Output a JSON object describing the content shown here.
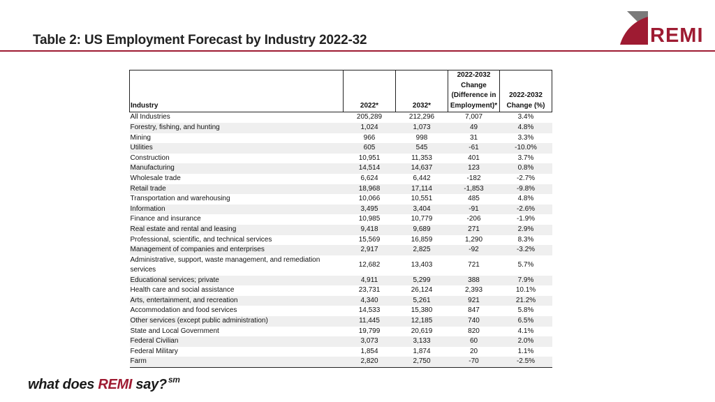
{
  "slide": {
    "title": "Table 2: US Employment Forecast by Industry 2022-32",
    "logo_text": "REMI",
    "tagline_pre": "what does ",
    "tagline_brand": "REMI",
    "tagline_post": " say?",
    "tagline_mark": "sm"
  },
  "colors": {
    "accent": "#9e1b32",
    "logo_gray": "#7a7a7a",
    "stripe": "#efefef"
  },
  "table": {
    "headers": {
      "industry": "Industry",
      "y2022": "2022*",
      "y2032": "2032*",
      "change": "2022-2032 Change (Difference in Employment)*",
      "pct": "2022-2032 Change (%)"
    },
    "rows": [
      [
        "All Industries",
        "205,289",
        "212,296",
        "7,007",
        "3.4%"
      ],
      [
        "Forestry, fishing, and hunting",
        "1,024",
        "1,073",
        "49",
        "4.8%"
      ],
      [
        "Mining",
        "966",
        "998",
        "31",
        "3.3%"
      ],
      [
        "Utilities",
        "605",
        "545",
        "-61",
        "-10.0%"
      ],
      [
        "Construction",
        "10,951",
        "11,353",
        "401",
        "3.7%"
      ],
      [
        "Manufacturing",
        "14,514",
        "14,637",
        "123",
        "0.8%"
      ],
      [
        "Wholesale trade",
        "6,624",
        "6,442",
        "-182",
        "-2.7%"
      ],
      [
        "Retail trade",
        "18,968",
        "17,114",
        "-1,853",
        "-9.8%"
      ],
      [
        "Transportation and warehousing",
        "10,066",
        "10,551",
        "485",
        "4.8%"
      ],
      [
        "Information",
        "3,495",
        "3,404",
        "-91",
        "-2.6%"
      ],
      [
        "Finance and insurance",
        "10,985",
        "10,779",
        "-206",
        "-1.9%"
      ],
      [
        "Real estate and rental and leasing",
        "9,418",
        "9,689",
        "271",
        "2.9%"
      ],
      [
        "Professional, scientific, and technical services",
        "15,569",
        "16,859",
        "1,290",
        "8.3%"
      ],
      [
        "Management of companies and enterprises",
        "2,917",
        "2,825",
        "-92",
        "-3.2%"
      ],
      [
        "Administrative, support, waste management, and remediation services",
        "12,682",
        "13,403",
        "721",
        "5.7%"
      ],
      [
        "Educational services; private",
        "4,911",
        "5,299",
        "388",
        "7.9%"
      ],
      [
        "Health care and social assistance",
        "23,731",
        "26,124",
        "2,393",
        "10.1%"
      ],
      [
        "Arts, entertainment, and recreation",
        "4,340",
        "5,261",
        "921",
        "21.2%"
      ],
      [
        "Accommodation and food services",
        "14,533",
        "15,380",
        "847",
        "5.8%"
      ],
      [
        "Other services (except public administration)",
        "11,445",
        "12,185",
        "740",
        "6.5%"
      ],
      [
        "State and Local Government",
        "19,799",
        "20,619",
        "820",
        "4.1%"
      ],
      [
        "Federal Civilian",
        "3,073",
        "3,133",
        "60",
        "2.0%"
      ],
      [
        "Federal Military",
        "1,854",
        "1,874",
        "20",
        "1.1%"
      ],
      [
        "Farm",
        "2,820",
        "2,750",
        "-70",
        "-2.5%"
      ]
    ]
  }
}
